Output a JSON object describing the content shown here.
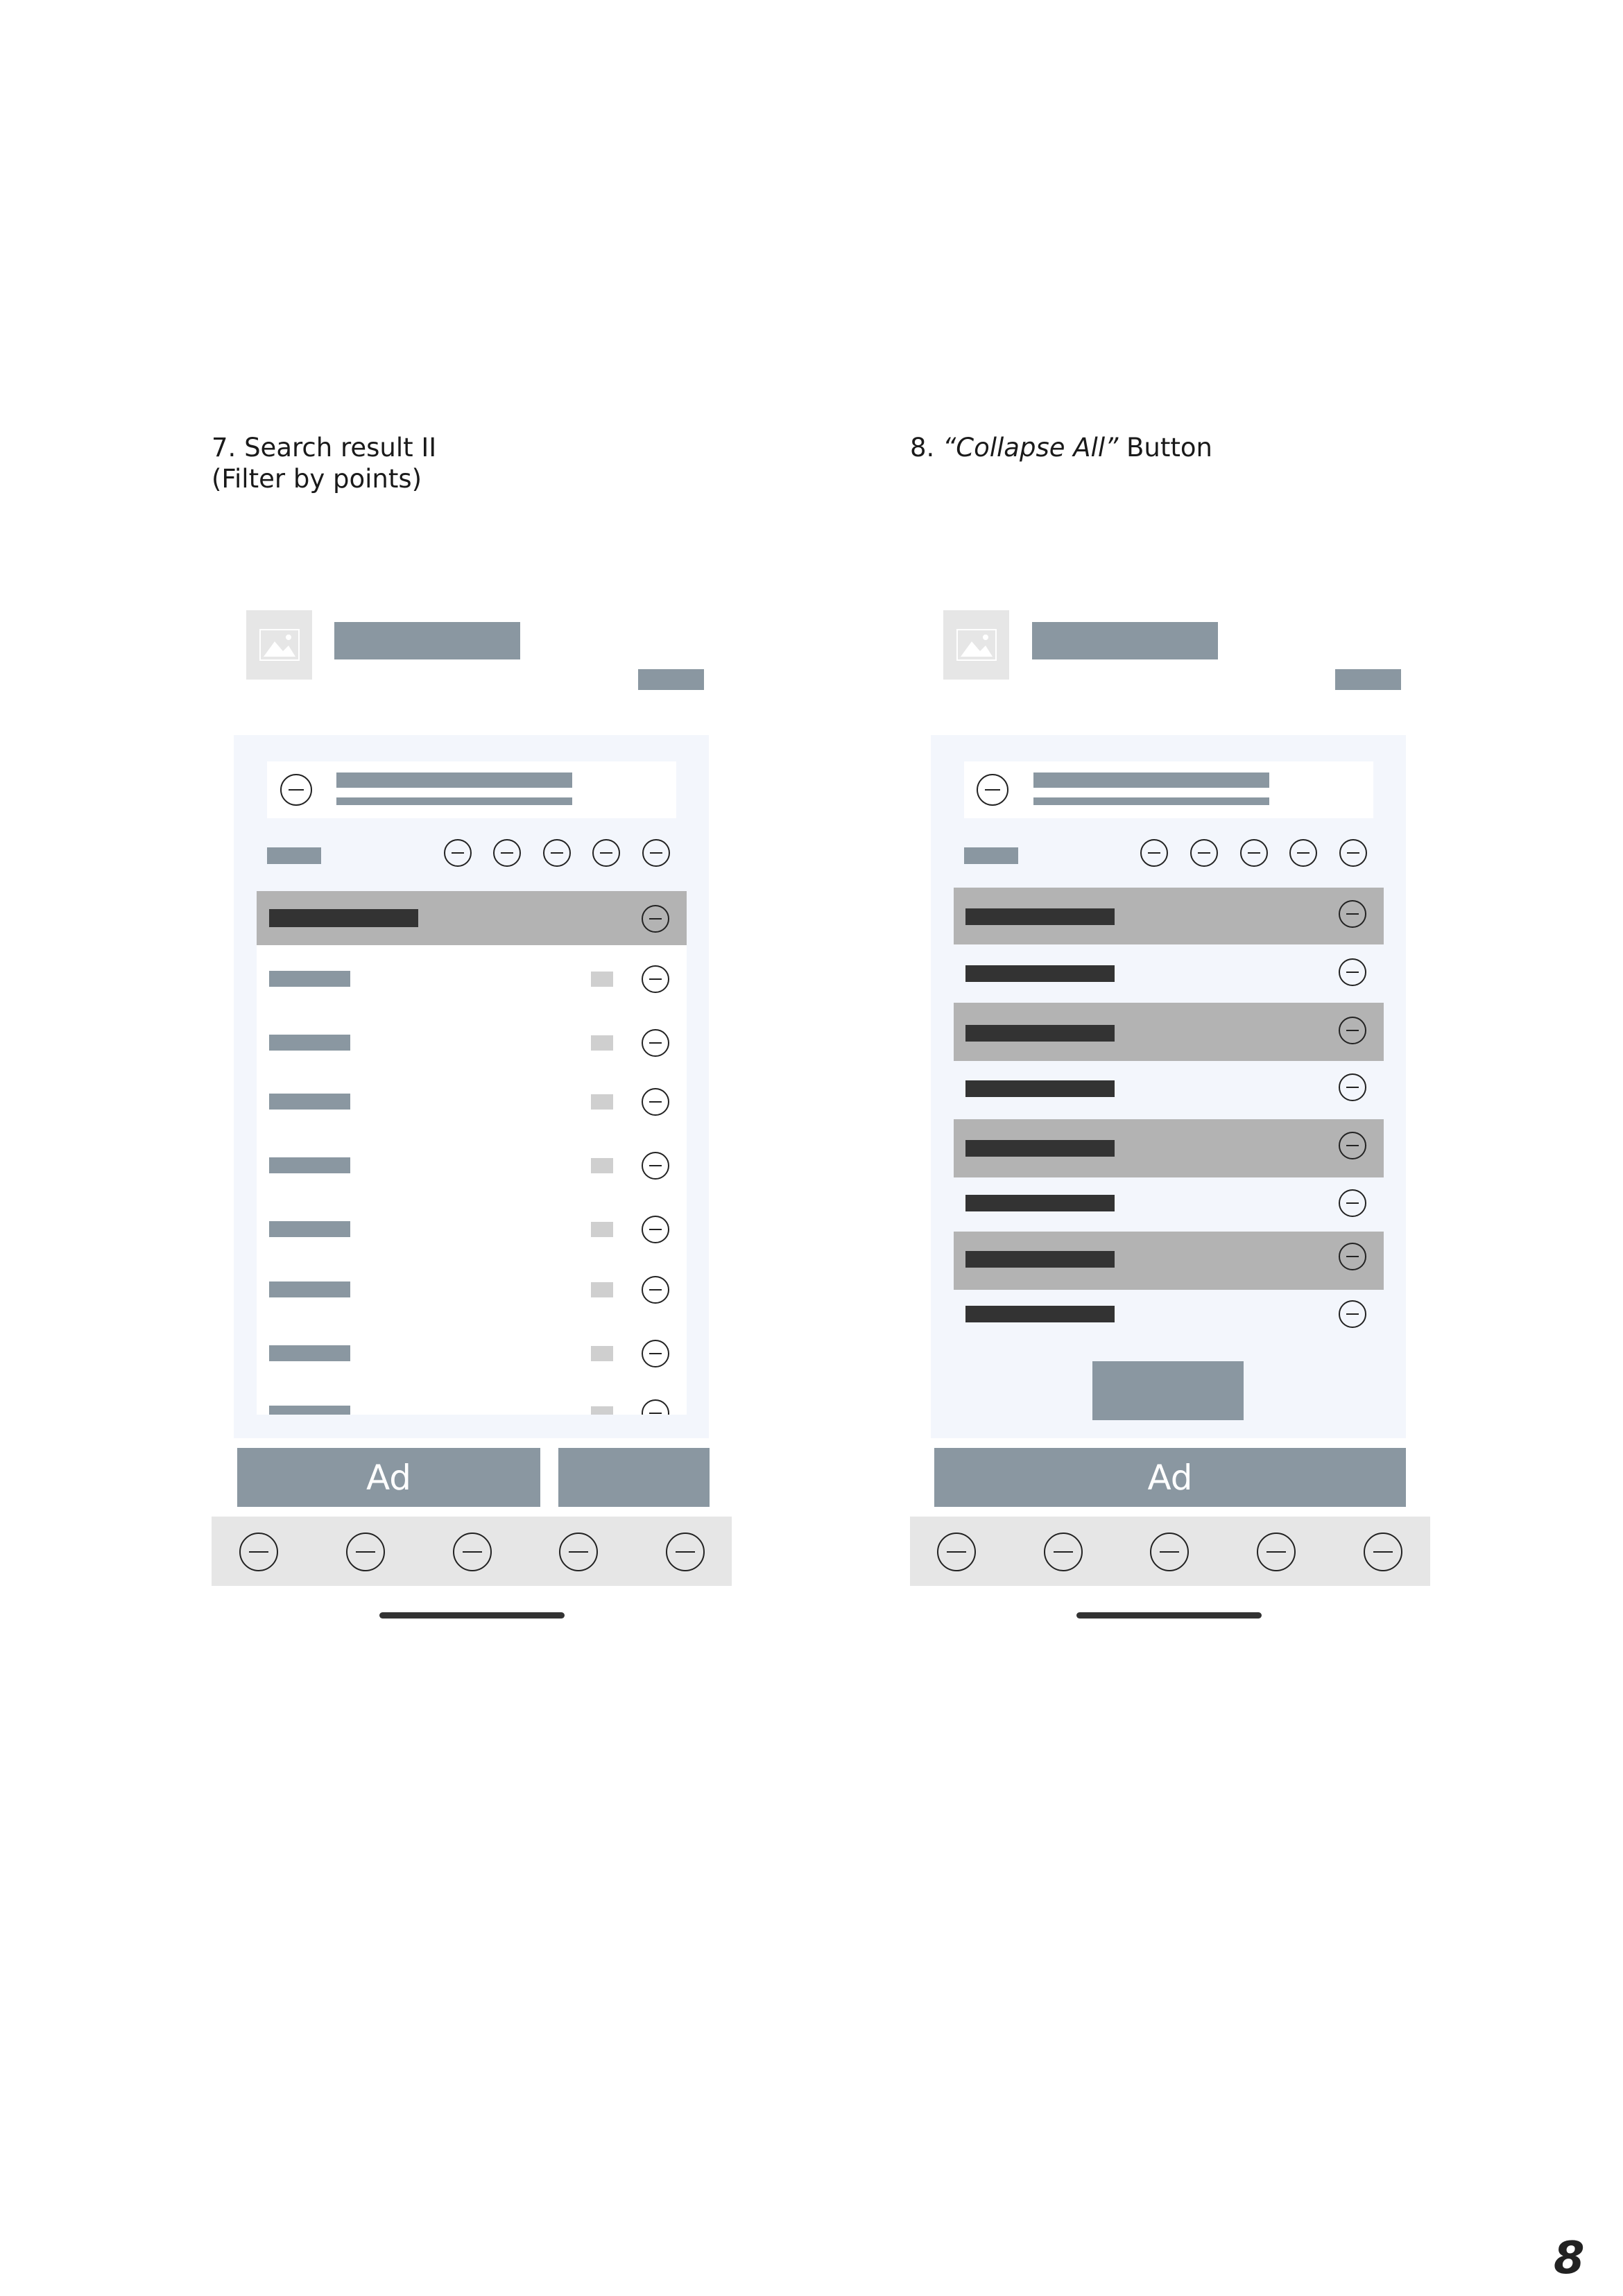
{
  "page": {
    "number": "8"
  },
  "screens": [
    {
      "caption_line1": "7. Search result II",
      "caption_line2": "(Filter by points)",
      "ad_label": "Ad"
    },
    {
      "caption_prefix": "8. ",
      "caption_italic": "“Collapse All”",
      "caption_suffix": " Button",
      "ad_label": "Ad"
    }
  ],
  "colors": {
    "placeholder": "#8a97a1",
    "dark_bar": "#333333",
    "highlight_row": "#b3b3b3",
    "panel_bg": "#f3f6fc",
    "tabbar_bg": "#e6e6e6"
  }
}
